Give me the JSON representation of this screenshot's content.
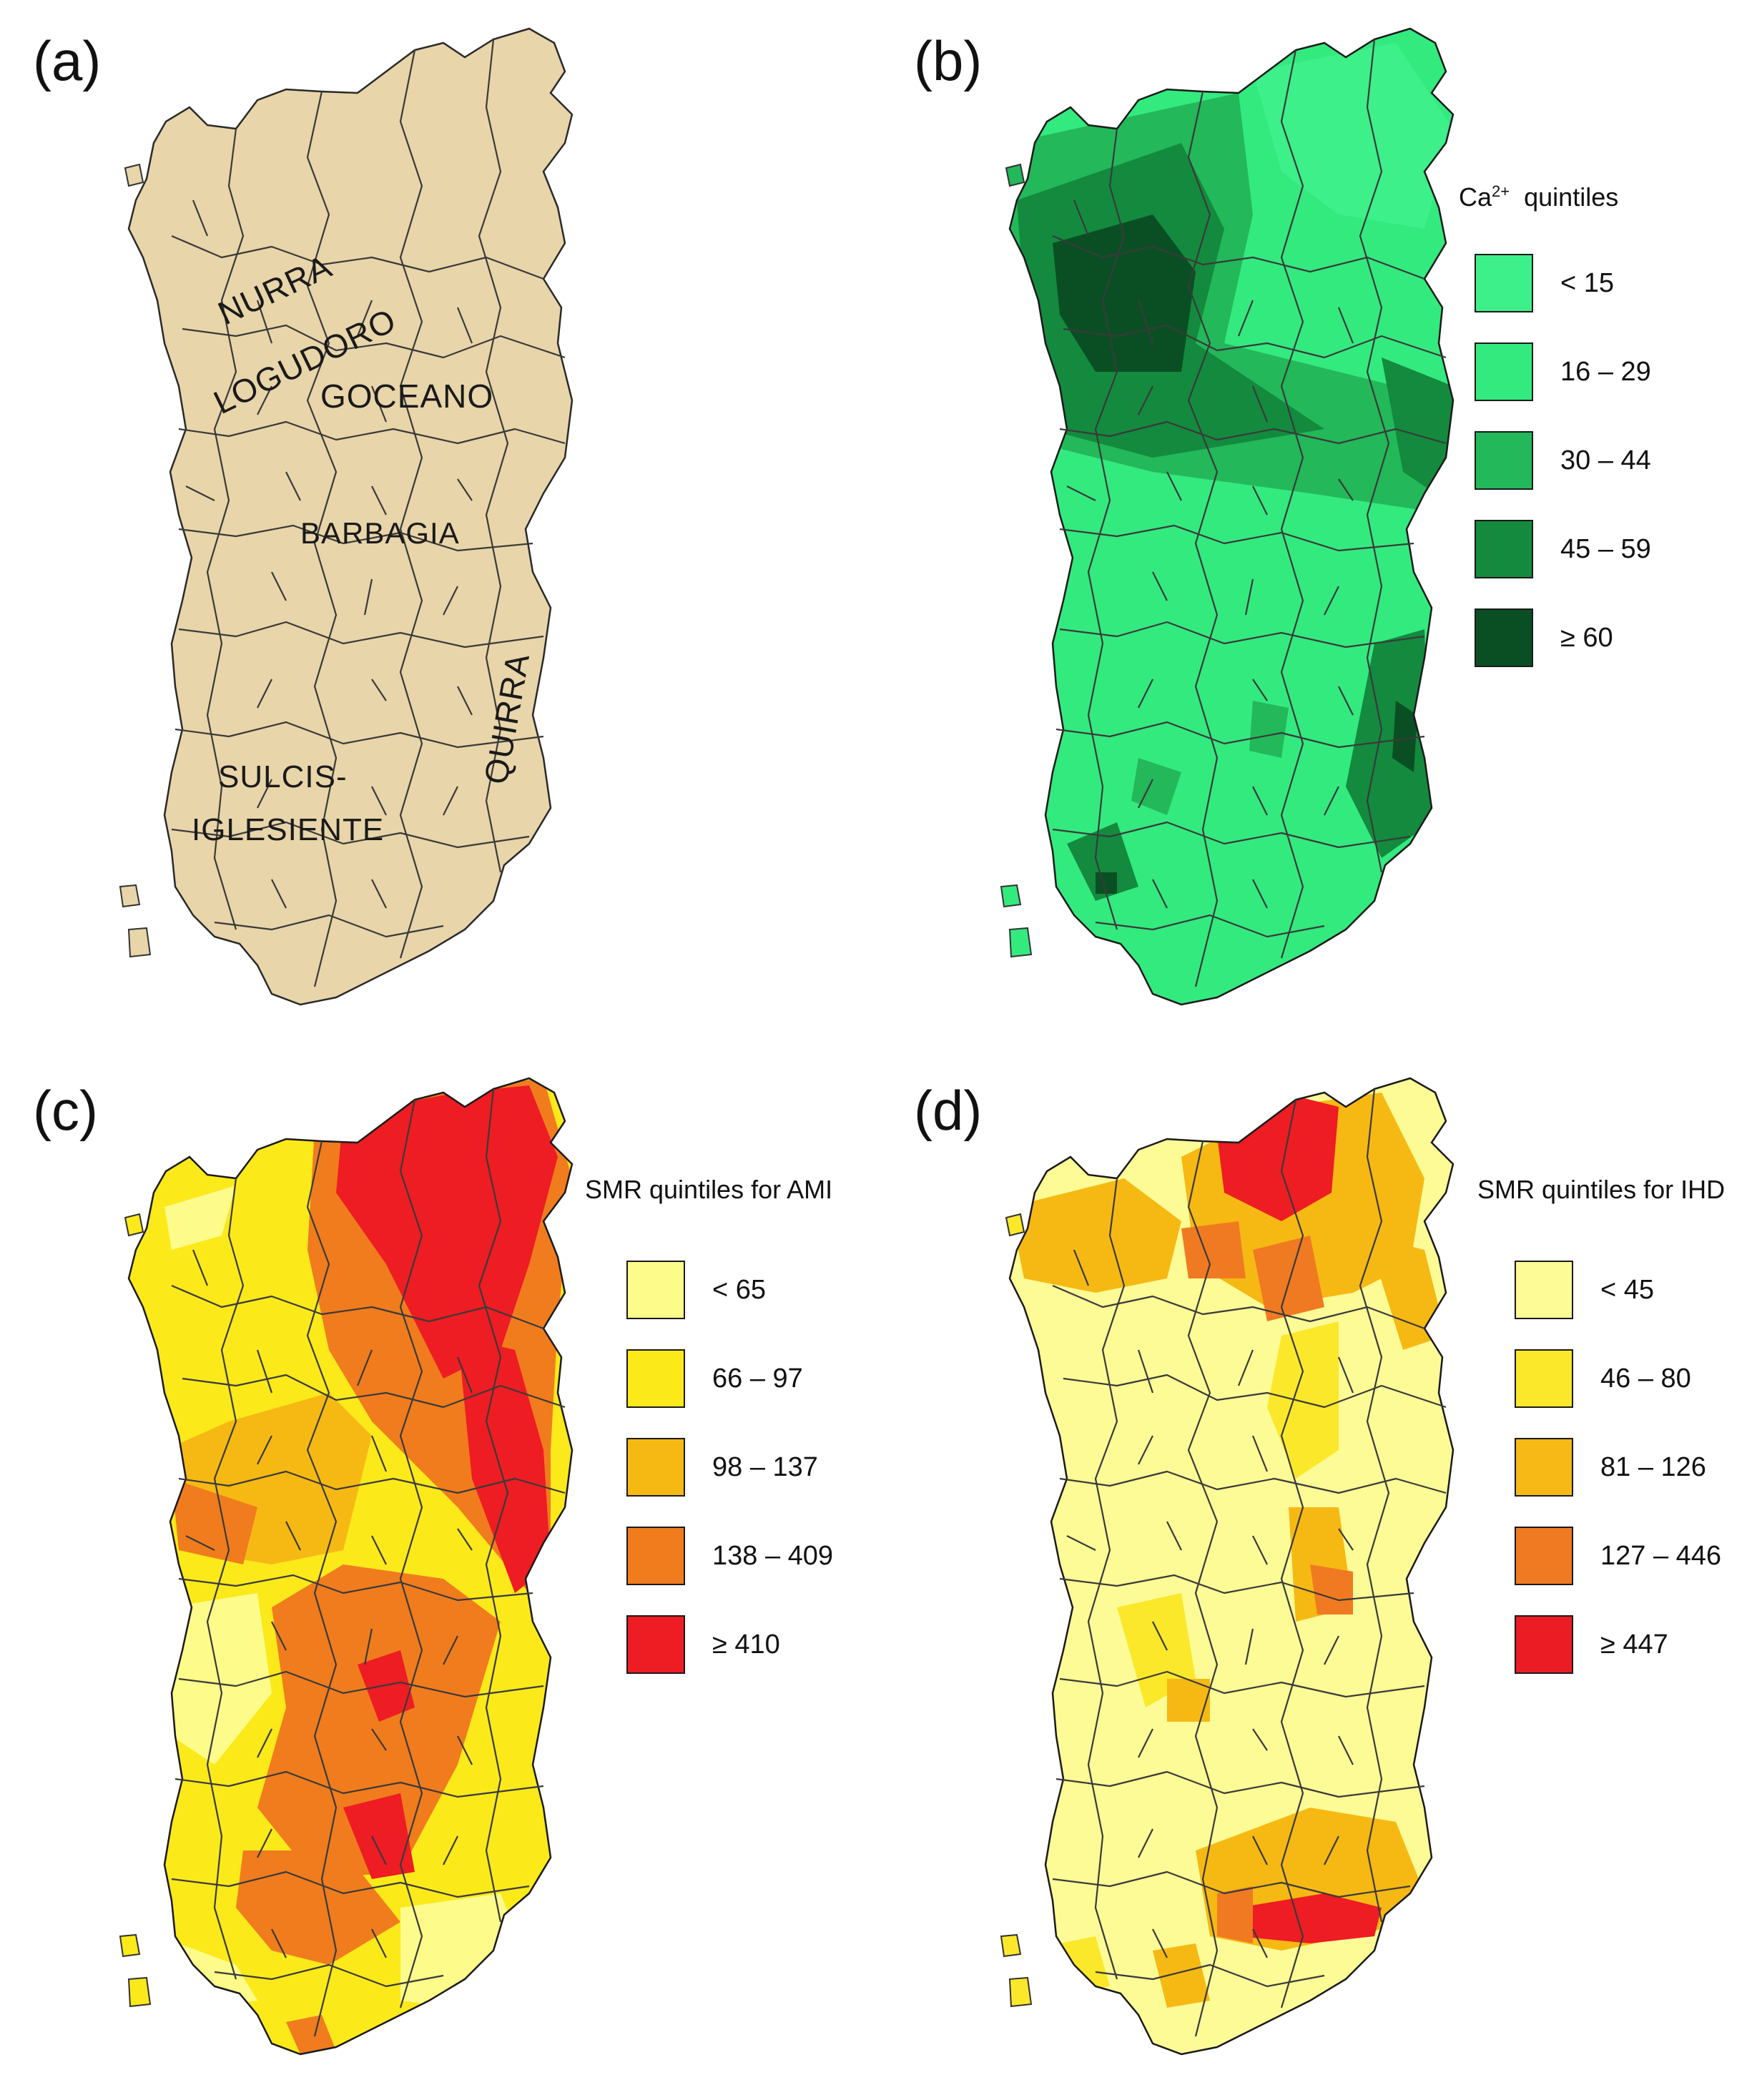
{
  "panels": {
    "a": {
      "label": "(a)",
      "regions": [
        "NURRA",
        "LOGUDORO",
        "GOCEANO",
        "BARBAGIA",
        "QUIRRA",
        "SULCIS-",
        "IGLESIENTE"
      ]
    },
    "b": {
      "label": "(b)",
      "legend_title": "Ca",
      "legend_title_sup": "2+",
      "legend_title_rest": "  quintiles",
      "items": [
        "< 15",
        "16 – 29",
        "30 – 44",
        "45 – 59",
        "≥ 60"
      ]
    },
    "c": {
      "label": "(c)",
      "legend_title": "SMR quintiles for AMI",
      "items": [
        "< 65",
        "66 – 97",
        "98 – 137",
        "138 – 409",
        "≥ 410"
      ]
    },
    "d": {
      "label": "(d)",
      "legend_title": "SMR quintiles for IHD",
      "items": [
        "< 45",
        "46 – 80",
        "81 – 126",
        "127 – 446",
        "≥ 447"
      ]
    }
  },
  "colors": {
    "base_map": "#e8d5a9",
    "green": [
      "#3df08a",
      "#33ea7f",
      "#23b85a",
      "#138a3e",
      "#0a4f23"
    ],
    "ami": [
      "#fdfb8a",
      "#fbe91a",
      "#f6b913",
      "#f07c1e",
      "#ee1c23"
    ],
    "ihd": [
      "#fdfb96",
      "#fbe82a",
      "#f6b916",
      "#f07a22",
      "#ec1c24"
    ]
  }
}
